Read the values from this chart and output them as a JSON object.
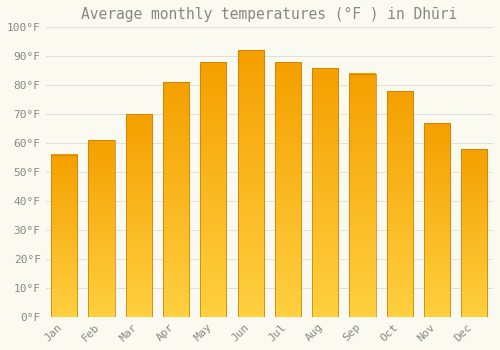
{
  "title": "Average monthly temperatures (°F ) in Dhūri",
  "months": [
    "Jan",
    "Feb",
    "Mar",
    "Apr",
    "May",
    "Jun",
    "Jul",
    "Aug",
    "Sep",
    "Oct",
    "Nov",
    "Dec"
  ],
  "values": [
    56,
    61,
    70,
    81,
    88,
    92,
    88,
    86,
    84,
    78,
    67,
    58
  ],
  "bar_color_bottom": "#FFD040",
  "bar_color_top": "#F5A000",
  "bar_edge_color": "#C87800",
  "background_color": "#FAFAF0",
  "grid_color": "#E0E0E0",
  "text_color": "#888888",
  "ylim": [
    0,
    100
  ],
  "yticks": [
    0,
    10,
    20,
    30,
    40,
    50,
    60,
    70,
    80,
    90,
    100
  ],
  "ytick_labels": [
    "0°F",
    "10°F",
    "20°F",
    "30°F",
    "40°F",
    "50°F",
    "60°F",
    "70°F",
    "80°F",
    "90°F",
    "100°F"
  ],
  "title_fontsize": 10.5,
  "tick_fontsize": 8,
  "bar_width": 0.7
}
